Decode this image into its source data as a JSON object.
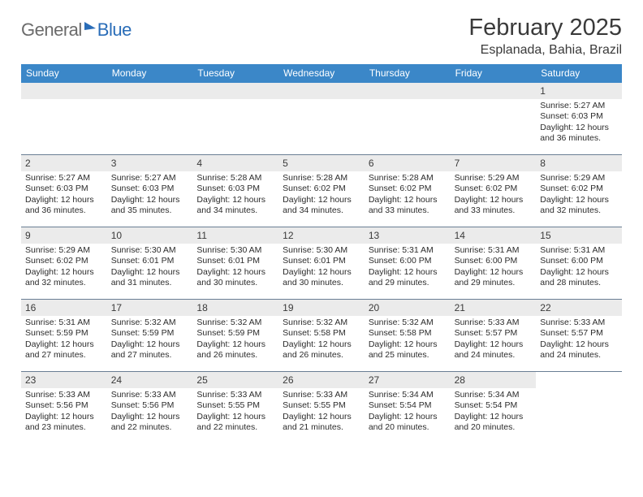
{
  "logo": {
    "part1": "General",
    "part2": "Blue"
  },
  "title": "February 2025",
  "location": "Esplanada, Bahia, Brazil",
  "header_bg": "#3b87c8",
  "daynum_bg": "#ebebeb",
  "week_border": "#6a7e94",
  "weekdays": [
    "Sunday",
    "Monday",
    "Tuesday",
    "Wednesday",
    "Thursday",
    "Friday",
    "Saturday"
  ],
  "weeks": [
    [
      {
        "empty": true
      },
      {
        "empty": true
      },
      {
        "empty": true
      },
      {
        "empty": true
      },
      {
        "empty": true
      },
      {
        "empty": true
      },
      {
        "num": "1",
        "sunrise": "5:27 AM",
        "sunset": "6:03 PM",
        "daylight": "12 hours and 36 minutes."
      }
    ],
    [
      {
        "num": "2",
        "sunrise": "5:27 AM",
        "sunset": "6:03 PM",
        "daylight": "12 hours and 36 minutes."
      },
      {
        "num": "3",
        "sunrise": "5:27 AM",
        "sunset": "6:03 PM",
        "daylight": "12 hours and 35 minutes."
      },
      {
        "num": "4",
        "sunrise": "5:28 AM",
        "sunset": "6:03 PM",
        "daylight": "12 hours and 34 minutes."
      },
      {
        "num": "5",
        "sunrise": "5:28 AM",
        "sunset": "6:02 PM",
        "daylight": "12 hours and 34 minutes."
      },
      {
        "num": "6",
        "sunrise": "5:28 AM",
        "sunset": "6:02 PM",
        "daylight": "12 hours and 33 minutes."
      },
      {
        "num": "7",
        "sunrise": "5:29 AM",
        "sunset": "6:02 PM",
        "daylight": "12 hours and 33 minutes."
      },
      {
        "num": "8",
        "sunrise": "5:29 AM",
        "sunset": "6:02 PM",
        "daylight": "12 hours and 32 minutes."
      }
    ],
    [
      {
        "num": "9",
        "sunrise": "5:29 AM",
        "sunset": "6:02 PM",
        "daylight": "12 hours and 32 minutes."
      },
      {
        "num": "10",
        "sunrise": "5:30 AM",
        "sunset": "6:01 PM",
        "daylight": "12 hours and 31 minutes."
      },
      {
        "num": "11",
        "sunrise": "5:30 AM",
        "sunset": "6:01 PM",
        "daylight": "12 hours and 30 minutes."
      },
      {
        "num": "12",
        "sunrise": "5:30 AM",
        "sunset": "6:01 PM",
        "daylight": "12 hours and 30 minutes."
      },
      {
        "num": "13",
        "sunrise": "5:31 AM",
        "sunset": "6:00 PM",
        "daylight": "12 hours and 29 minutes."
      },
      {
        "num": "14",
        "sunrise": "5:31 AM",
        "sunset": "6:00 PM",
        "daylight": "12 hours and 29 minutes."
      },
      {
        "num": "15",
        "sunrise": "5:31 AM",
        "sunset": "6:00 PM",
        "daylight": "12 hours and 28 minutes."
      }
    ],
    [
      {
        "num": "16",
        "sunrise": "5:31 AM",
        "sunset": "5:59 PM",
        "daylight": "12 hours and 27 minutes."
      },
      {
        "num": "17",
        "sunrise": "5:32 AM",
        "sunset": "5:59 PM",
        "daylight": "12 hours and 27 minutes."
      },
      {
        "num": "18",
        "sunrise": "5:32 AM",
        "sunset": "5:59 PM",
        "daylight": "12 hours and 26 minutes."
      },
      {
        "num": "19",
        "sunrise": "5:32 AM",
        "sunset": "5:58 PM",
        "daylight": "12 hours and 26 minutes."
      },
      {
        "num": "20",
        "sunrise": "5:32 AM",
        "sunset": "5:58 PM",
        "daylight": "12 hours and 25 minutes."
      },
      {
        "num": "21",
        "sunrise": "5:33 AM",
        "sunset": "5:57 PM",
        "daylight": "12 hours and 24 minutes."
      },
      {
        "num": "22",
        "sunrise": "5:33 AM",
        "sunset": "5:57 PM",
        "daylight": "12 hours and 24 minutes."
      }
    ],
    [
      {
        "num": "23",
        "sunrise": "5:33 AM",
        "sunset": "5:56 PM",
        "daylight": "12 hours and 23 minutes."
      },
      {
        "num": "24",
        "sunrise": "5:33 AM",
        "sunset": "5:56 PM",
        "daylight": "12 hours and 22 minutes."
      },
      {
        "num": "25",
        "sunrise": "5:33 AM",
        "sunset": "5:55 PM",
        "daylight": "12 hours and 22 minutes."
      },
      {
        "num": "26",
        "sunrise": "5:33 AM",
        "sunset": "5:55 PM",
        "daylight": "12 hours and 21 minutes."
      },
      {
        "num": "27",
        "sunrise": "5:34 AM",
        "sunset": "5:54 PM",
        "daylight": "12 hours and 20 minutes."
      },
      {
        "num": "28",
        "sunrise": "5:34 AM",
        "sunset": "5:54 PM",
        "daylight": "12 hours and 20 minutes."
      },
      {
        "empty": true,
        "noStrip": true
      }
    ]
  ]
}
